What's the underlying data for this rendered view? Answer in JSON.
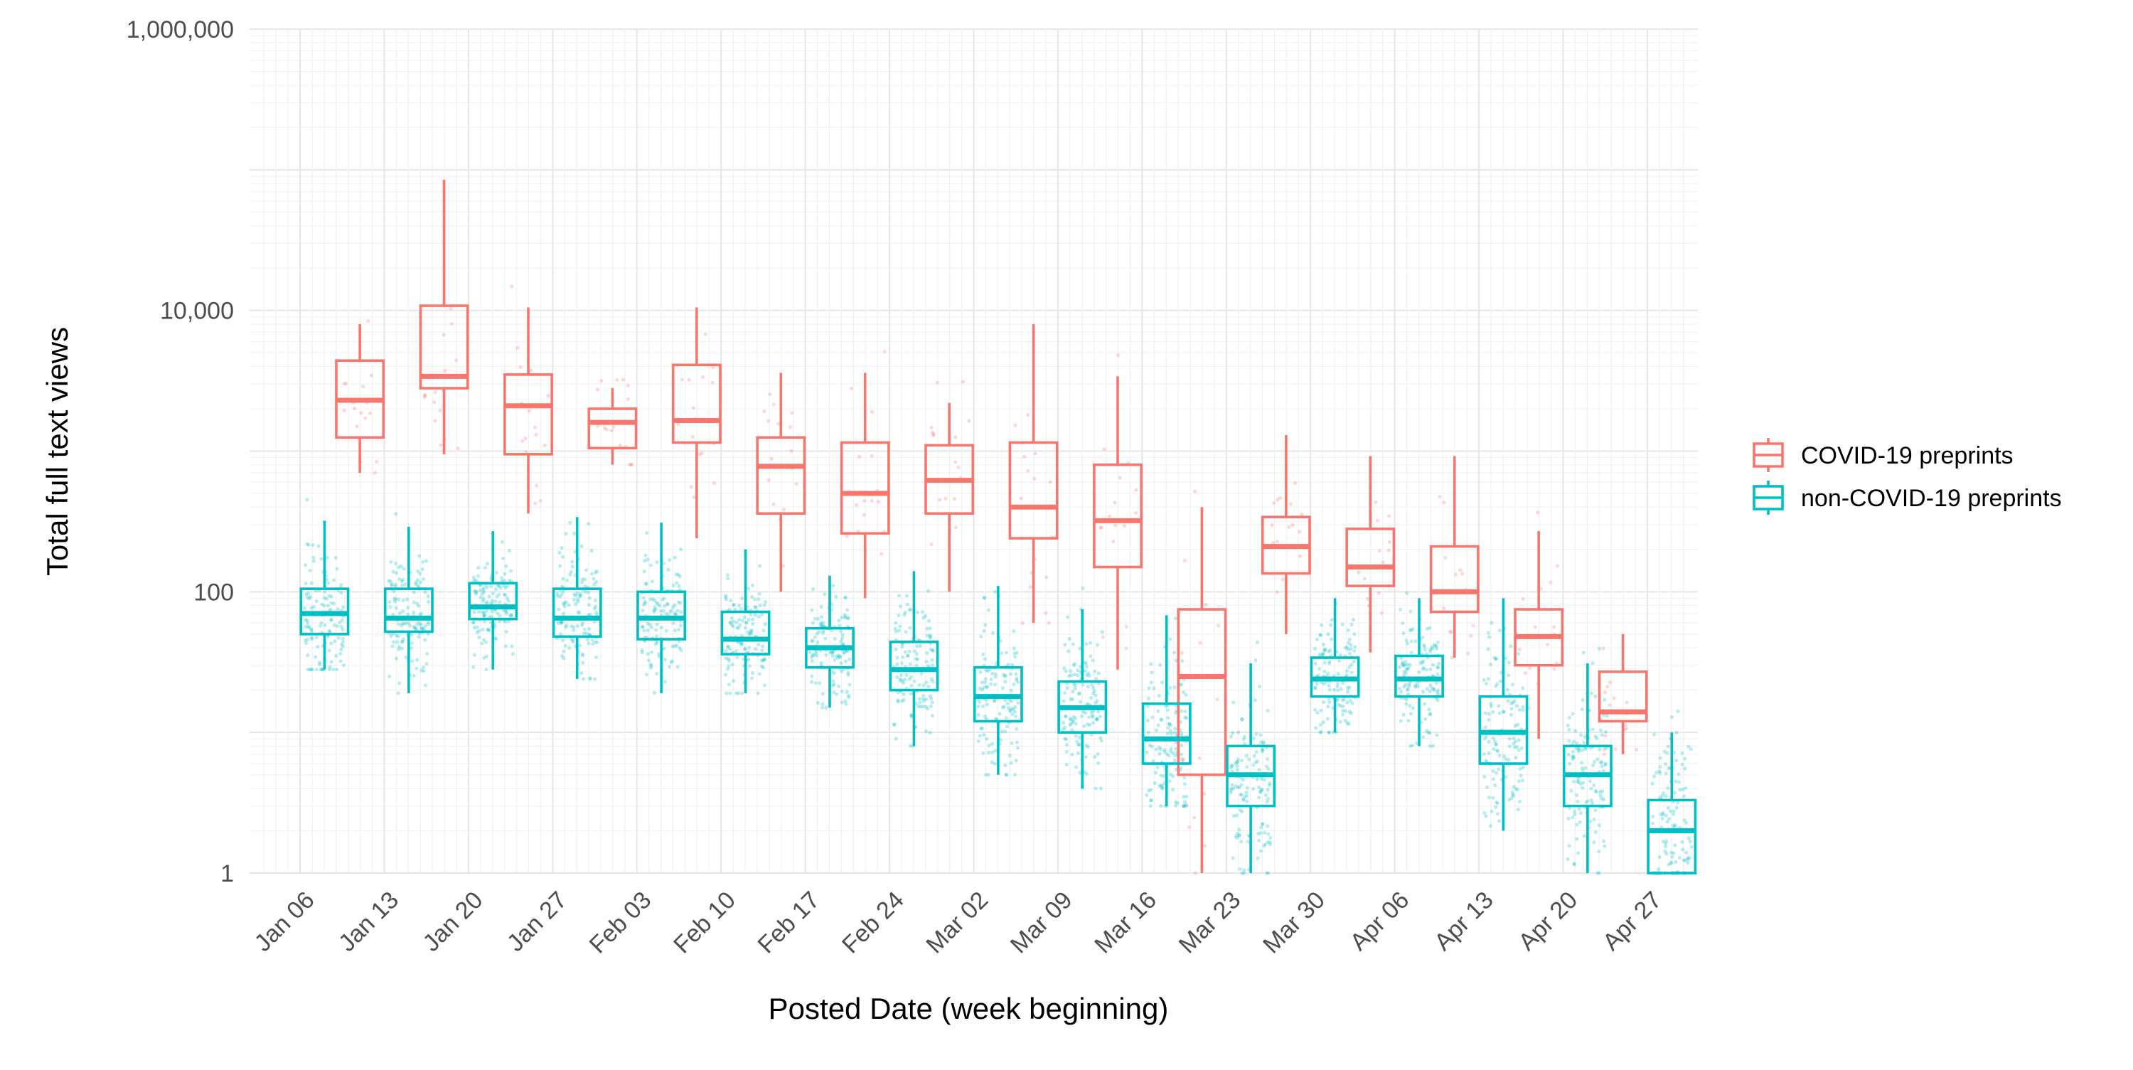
{
  "chart_data": {
    "type": "box",
    "title": "",
    "xlabel": "Posted Date (week beginning)",
    "ylabel": "Total full text views",
    "y_scale": "log10",
    "ylim": [
      1,
      1000000
    ],
    "y_ticks": [
      1,
      100,
      10000,
      1000000
    ],
    "y_tick_labels": [
      "1",
      "100",
      "10,000",
      "1,000,000"
    ],
    "grid": true,
    "legend_position": "right",
    "categories": [
      "Jan 06",
      "Jan 13",
      "Jan 20",
      "Jan 27",
      "Feb 03",
      "Feb 10",
      "Feb 17",
      "Feb 24",
      "Mar 02",
      "Mar 09",
      "Mar 16",
      "Mar 23",
      "Mar 30",
      "Apr 06",
      "Apr 13",
      "Apr 20",
      "Apr 27"
    ],
    "series": [
      {
        "name": "COVID-19 preprints",
        "color": "#F8766D",
        "boxes": [
          null,
          {
            "whisker_low": 700,
            "q1": 1250,
            "median": 2300,
            "q3": 4400,
            "whisker_high": 8000
          },
          {
            "whisker_low": 950,
            "q1": 2800,
            "median": 3400,
            "q3": 10800,
            "whisker_high": 85000
          },
          {
            "whisker_low": 360,
            "q1": 950,
            "median": 2100,
            "q3": 3500,
            "whisker_high": 10500
          },
          {
            "whisker_low": 800,
            "q1": 1050,
            "median": 1600,
            "q3": 2000,
            "whisker_high": 2800
          },
          {
            "whisker_low": 240,
            "q1": 1150,
            "median": 1650,
            "q3": 4100,
            "whisker_high": 10500
          },
          {
            "whisker_low": 100,
            "q1": 360,
            "median": 780,
            "q3": 1250,
            "whisker_high": 3600
          },
          {
            "whisker_low": 90,
            "q1": 260,
            "median": 500,
            "q3": 1150,
            "whisker_high": 3600
          },
          {
            "whisker_low": 100,
            "q1": 360,
            "median": 620,
            "q3": 1100,
            "whisker_high": 2200
          },
          {
            "whisker_low": 60,
            "q1": 240,
            "median": 400,
            "q3": 1150,
            "whisker_high": 8000
          },
          {
            "whisker_low": 28,
            "q1": 150,
            "median": 320,
            "q3": 800,
            "whisker_high": 3400
          },
          {
            "whisker_low": 1,
            "q1": 5,
            "median": 25,
            "q3": 75,
            "whisker_high": 400
          },
          {
            "whisker_low": 50,
            "q1": 135,
            "median": 210,
            "q3": 340,
            "whisker_high": 1300
          },
          {
            "whisker_low": 37,
            "q1": 110,
            "median": 150,
            "q3": 280,
            "whisker_high": 920
          },
          {
            "whisker_low": 34,
            "q1": 72,
            "median": 100,
            "q3": 210,
            "whisker_high": 920
          },
          {
            "whisker_low": 9,
            "q1": 30,
            "median": 48,
            "q3": 75,
            "whisker_high": 270
          },
          {
            "whisker_low": 7,
            "q1": 12,
            "median": 14,
            "q3": 27,
            "whisker_high": 50
          }
        ]
      },
      {
        "name": "non-COVID-19 preprints",
        "color": "#00BFC4",
        "boxes": [
          {
            "whisker_low": 28,
            "q1": 50,
            "median": 70,
            "q3": 105,
            "whisker_high": 320
          },
          {
            "whisker_low": 19,
            "q1": 52,
            "median": 65,
            "q3": 105,
            "whisker_high": 290
          },
          {
            "whisker_low": 28,
            "q1": 64,
            "median": 78,
            "q3": 115,
            "whisker_high": 270
          },
          {
            "whisker_low": 24,
            "q1": 48,
            "median": 65,
            "q3": 105,
            "whisker_high": 340
          },
          {
            "whisker_low": 19,
            "q1": 46,
            "median": 65,
            "q3": 100,
            "whisker_high": 310
          },
          {
            "whisker_low": 19,
            "q1": 36,
            "median": 46,
            "q3": 72,
            "whisker_high": 200
          },
          {
            "whisker_low": 15,
            "q1": 29,
            "median": 40,
            "q3": 55,
            "whisker_high": 130
          },
          {
            "whisker_low": 8,
            "q1": 20,
            "median": 28,
            "q3": 44,
            "whisker_high": 140
          },
          {
            "whisker_low": 5,
            "q1": 12,
            "median": 18,
            "q3": 29,
            "whisker_high": 110
          },
          {
            "whisker_low": 4,
            "q1": 10,
            "median": 15,
            "q3": 23,
            "whisker_high": 75
          },
          {
            "whisker_low": 3,
            "q1": 6,
            "median": 9,
            "q3": 16,
            "whisker_high": 68
          },
          {
            "whisker_low": 1,
            "q1": 3,
            "median": 5,
            "q3": 8,
            "whisker_high": 31
          },
          {
            "whisker_low": 10,
            "q1": 18,
            "median": 24,
            "q3": 34,
            "whisker_high": 90
          },
          {
            "whisker_low": 8,
            "q1": 18,
            "median": 24,
            "q3": 35,
            "whisker_high": 90
          },
          {
            "whisker_low": 2,
            "q1": 6,
            "median": 10,
            "q3": 18,
            "whisker_high": 90
          },
          {
            "whisker_low": 1,
            "q1": 3,
            "median": 5,
            "q3": 8,
            "whisker_high": 31
          },
          {
            "whisker_low": 1,
            "q1": 1,
            "median": 2,
            "q3": 3.3,
            "whisker_high": 10
          }
        ]
      }
    ]
  }
}
